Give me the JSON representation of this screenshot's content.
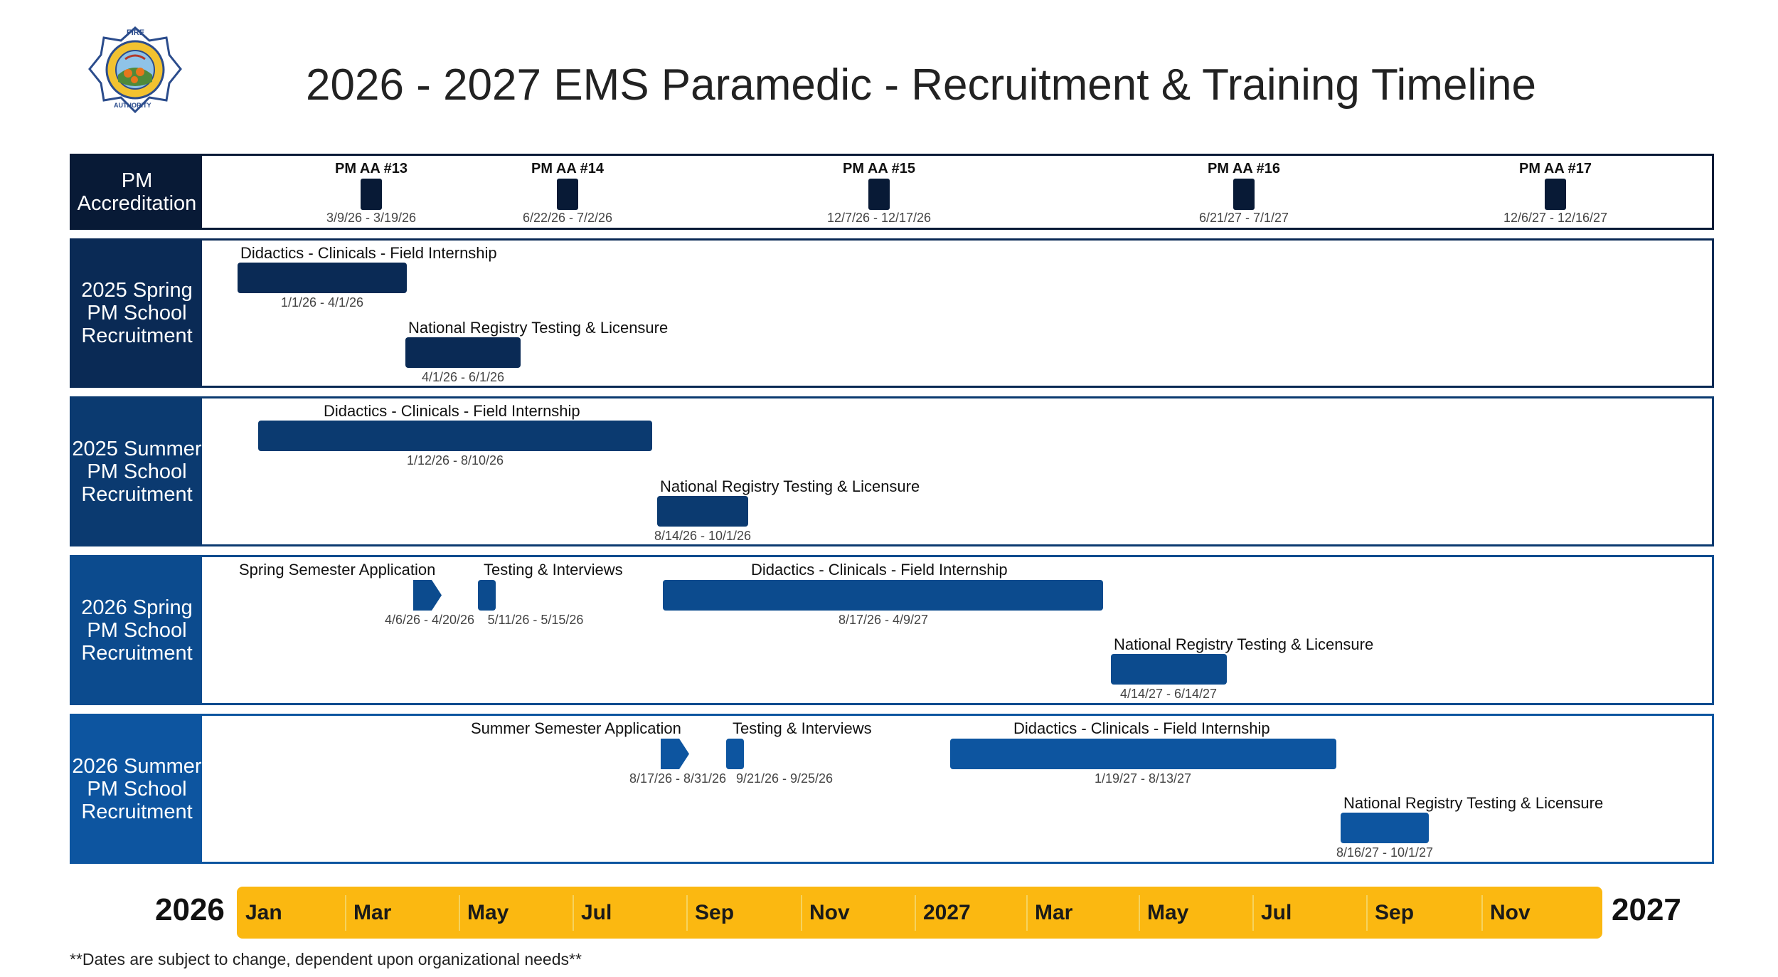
{
  "title": "2026 - 2027 EMS Paramedic - Recruitment & Training Timeline",
  "logo": {
    "icon": "fire-authority-badge-icon",
    "text_top": "FIRE",
    "text_ring": "ORANGE COUNTY",
    "text_state": "CALIFORNIA",
    "text_bottom": "AUTHORITY"
  },
  "colors": {
    "row1": "#081a36",
    "row2": "#0a2a55",
    "row3": "#0b3a70",
    "row4": "#0c4b8e",
    "row5": "#0d55a0",
    "axis": "#fbb811"
  },
  "rows": [
    {
      "label": "PM Accreditation",
      "milestones": [
        {
          "name": "PM AA #13",
          "dates": "3/9/26 - 3/19/26"
        },
        {
          "name": "PM AA #14",
          "dates": "6/22/26 - 7/2/26"
        },
        {
          "name": "PM AA #15",
          "dates": "12/7/26 - 12/17/26"
        },
        {
          "name": "PM AA #16",
          "dates": "6/21/27 - 7/1/27"
        },
        {
          "name": "PM AA #17",
          "dates": "12/6/27 - 12/16/27"
        }
      ]
    },
    {
      "label": "2025 Spring PM School Recruitment",
      "tasks": [
        {
          "name": "Didactics - Clinicals - Field Internship",
          "dates": "1/1/26 - 4/1/26"
        },
        {
          "name": "National Registry Testing & Licensure",
          "dates": "4/1/26 - 6/1/26"
        }
      ]
    },
    {
      "label": "2025 Summer PM School Recruitment",
      "tasks": [
        {
          "name": "Didactics - Clinicals - Field Internship",
          "dates": "1/12/26 - 8/10/26"
        },
        {
          "name": "National Registry Testing & Licensure",
          "dates": "8/14/26 - 10/1/26"
        }
      ]
    },
    {
      "label": "2026 Spring PM School Recruitment",
      "tasks": [
        {
          "name": "Spring Semester Application",
          "dates": "4/6/26 - 4/20/26"
        },
        {
          "name": "Testing & Interviews",
          "dates": "5/11/26 - 5/15/26"
        },
        {
          "name": "Didactics - Clinicals - Field Internship",
          "dates": "8/17/26 - 4/9/27"
        },
        {
          "name": "National Registry Testing & Licensure",
          "dates": "4/14/27 - 6/14/27"
        }
      ]
    },
    {
      "label": "2026 Summer PM School Recruitment",
      "tasks": [
        {
          "name": "Summer Semester Application",
          "dates": "8/17/26 - 8/31/26"
        },
        {
          "name": "Testing & Interviews",
          "dates": "9/21/26 - 9/25/26"
        },
        {
          "name": "Didactics - Clinicals - Field Internship",
          "dates": "1/19/27 - 8/13/27"
        },
        {
          "name": "National Registry Testing & Licensure",
          "dates": "8/16/27 - 10/1/27"
        }
      ]
    }
  ],
  "axis": {
    "start_year": "2026",
    "end_year": "2027",
    "months": [
      "Jan",
      "Mar",
      "May",
      "Jul",
      "Sep",
      "Nov",
      "2027",
      "Mar",
      "May",
      "Jul",
      "Sep",
      "Nov"
    ]
  },
  "footnote": "**Dates are subject to change, dependent upon organizational needs**"
}
